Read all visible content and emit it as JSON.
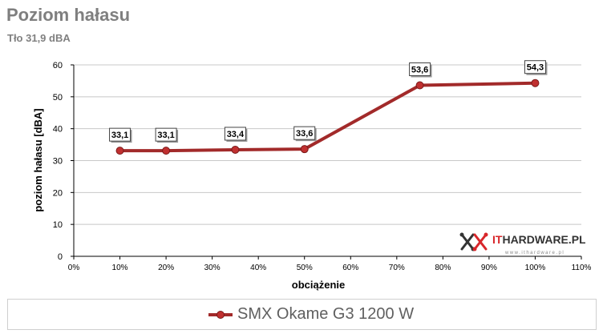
{
  "header": {
    "title": "Poziom hałasu",
    "subtitle": "Tło 31,9 dBA"
  },
  "colors": {
    "series": "#a22a2a",
    "marker": "#c03030",
    "grid": "#c8c8c8",
    "axis": "#000000",
    "title": "#7f7f7f"
  },
  "chart_data": {
    "type": "line",
    "xlabel": "obciążenie",
    "ylabel": "poziom hałasu [dBA]",
    "xlim": [
      0,
      110
    ],
    "ylim": [
      0,
      60
    ],
    "x_ticks": [
      0,
      10,
      20,
      30,
      40,
      50,
      60,
      70,
      80,
      90,
      100,
      110
    ],
    "x_tick_labels": [
      "0%",
      "10%",
      "20%",
      "30%",
      "40%",
      "50%",
      "60%",
      "70%",
      "80%",
      "90%",
      "100%",
      "110%"
    ],
    "y_ticks": [
      0,
      10,
      20,
      30,
      40,
      50,
      60
    ],
    "y_tick_labels": [
      "0",
      "10",
      "20",
      "30",
      "40",
      "50",
      "60"
    ],
    "grid": "horizontal",
    "legend_position": "bottom",
    "series": [
      {
        "name": "SMX Okame G3 1200 W",
        "x": [
          10,
          20,
          35,
          50,
          75,
          100
        ],
        "values": [
          33.1,
          33.1,
          33.4,
          33.6,
          53.6,
          54.3
        ],
        "labels": [
          "33,1",
          "33,1",
          "33,4",
          "33,6",
          "53,6",
          "54,3"
        ]
      }
    ]
  },
  "watermark": {
    "brand_it": "IT",
    "brand_rest": "HARDWARE.PL",
    "url": "www.ithardware.pl"
  }
}
